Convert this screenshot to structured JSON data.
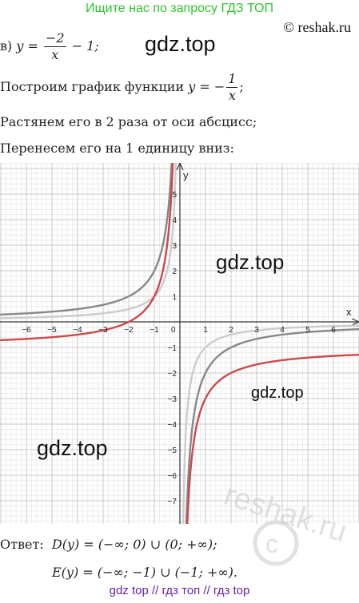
{
  "banner": "Ищите нас по запросу ГДЗ ТОП",
  "copyright": "© reshak.ru",
  "watermark": "gdz.top",
  "watermark_reshak": "reshak.ru",
  "task": {
    "label": "в)",
    "fn_lhs": "y = ",
    "fn_num": "−2",
    "fn_den": "x",
    "fn_tail": " − 1;"
  },
  "steps": {
    "s1_text": "Построим график функции ",
    "s1_lhs": "y = −",
    "s1_num": "1",
    "s1_den": "x",
    "s1_tail": ";",
    "s2": "Растянем его в 2 раза от оси абсцисс;",
    "s3": "Перенесем его на 1 единицу вниз:"
  },
  "chart_data": {
    "type": "line",
    "xlabel": "x",
    "ylabel": "y",
    "xlim": [
      -7,
      7.2
    ],
    "ylim": [
      -8,
      6.5
    ],
    "x_ticks": [
      -6,
      -5,
      -4,
      -3,
      -2,
      -1,
      1,
      2,
      3,
      4,
      5,
      6
    ],
    "y_ticks": [
      -7,
      -6,
      -5,
      -4,
      -3,
      -2,
      -1,
      1,
      2,
      3,
      4,
      5
    ],
    "origin_label": "0",
    "grid": true,
    "series": [
      {
        "formula": "y = -1/x",
        "color": "#cccccc",
        "k": -1,
        "shift": 0
      },
      {
        "formula": "y = -2/x",
        "color": "#888888",
        "k": -2,
        "shift": 0
      },
      {
        "formula": "y = -2/x - 1",
        "color": "#cc4a4a",
        "k": -2,
        "shift": -1
      }
    ]
  },
  "answer": {
    "label": "Ответ:",
    "domain": "D(y) = (−∞; 0) ∪ (0; +∞);",
    "range": "E(y) = (−∞; −1) ∪ (−1; +∞)."
  },
  "footer": "gdz top  //  гдз топ  //  гдз top"
}
